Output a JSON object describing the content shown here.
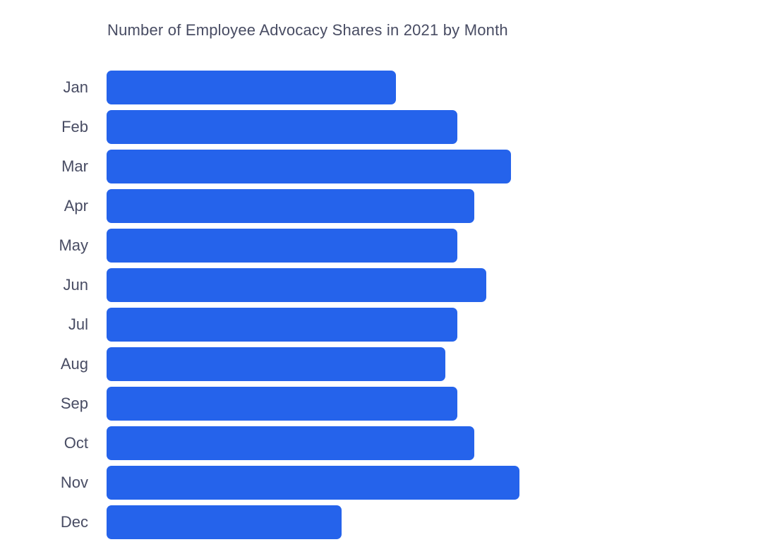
{
  "page": {
    "background": "#ffffff"
  },
  "colors": {
    "bar": "#2563eb",
    "text": "#484c63",
    "background": "#ffffff"
  },
  "chart_data": {
    "type": "bar",
    "orientation": "horizontal",
    "title": "Number of Employee Advocacy Shares in 2021 by Month",
    "categories": [
      "Jan",
      "Feb",
      "Mar",
      "Apr",
      "May",
      "Jun",
      "Jul",
      "Aug",
      "Sep",
      "Oct",
      "Nov",
      "Dec"
    ],
    "values": [
      70,
      85,
      98,
      89,
      85,
      92,
      85,
      82,
      85,
      89,
      100,
      57
    ],
    "xlabel": "",
    "ylabel": "",
    "xlim": [
      0,
      100
    ],
    "units": "relative share volume (no numeric axis shown; Nov = 100)",
    "grid": false,
    "legend": false,
    "value_labels_shown": false
  }
}
